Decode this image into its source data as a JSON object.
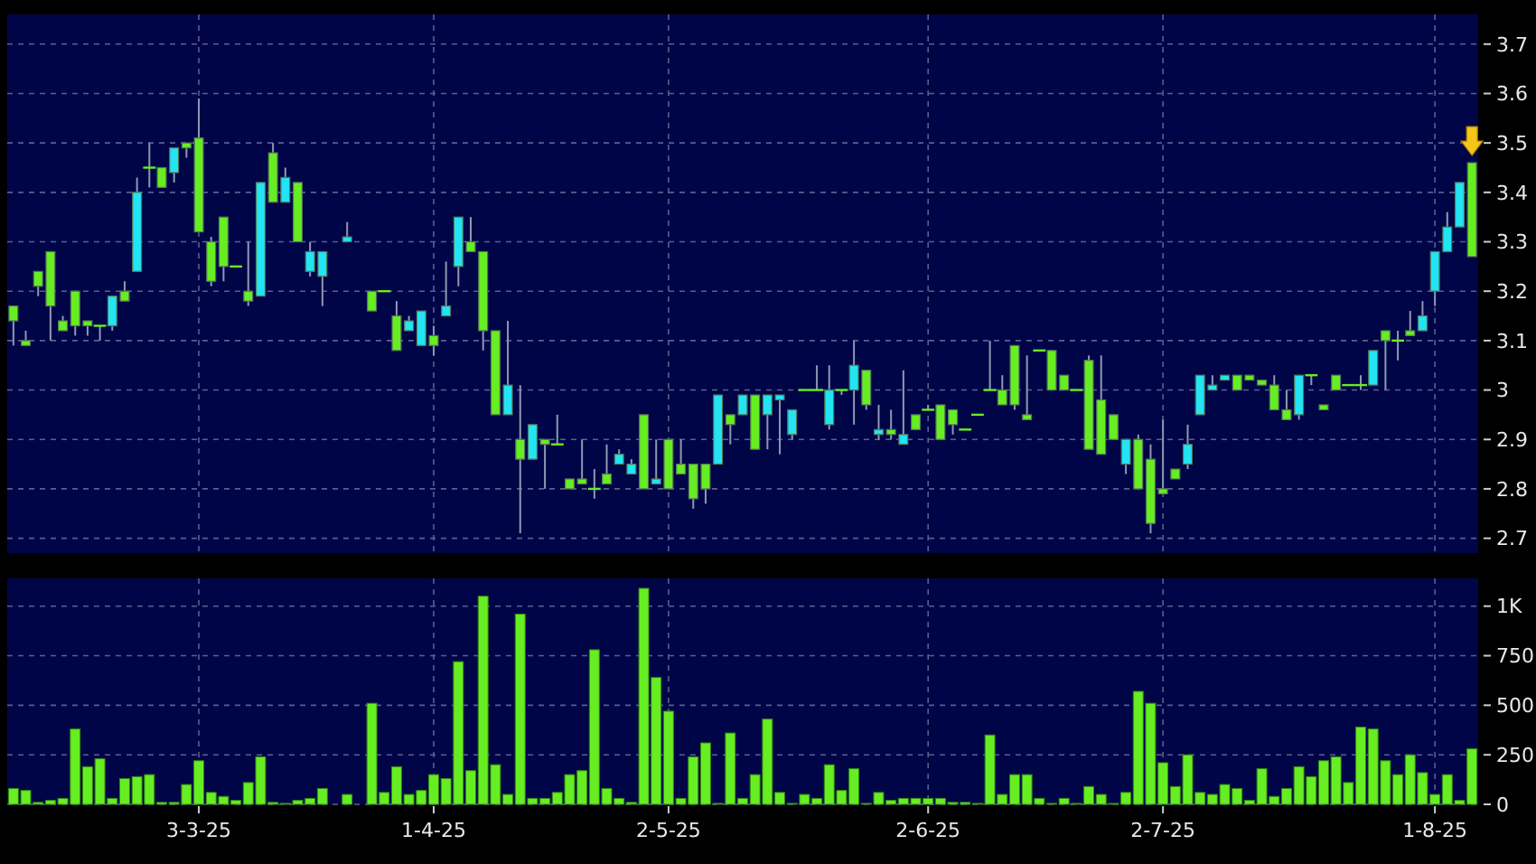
{
  "chart_data": [
    {
      "type": "candlestick",
      "tick_labels": "y",
      "grid": true,
      "ylim": [
        2.67,
        3.76
      ],
      "yticks": [
        2.7,
        2.8,
        2.9,
        3,
        3.1,
        3.2,
        3.3,
        3.4,
        3.5,
        3.6,
        3.7
      ],
      "categories": [
        null,
        null,
        null,
        null,
        null,
        null,
        null,
        null,
        null,
        null,
        null,
        null,
        null,
        null,
        null,
        null,
        null,
        null,
        null,
        null,
        null,
        null,
        null,
        null,
        null,
        null,
        null,
        null,
        null,
        null,
        null,
        null,
        null,
        null,
        null,
        null,
        null,
        null,
        null,
        null,
        null,
        null,
        null,
        null,
        null,
        null,
        null,
        null,
        null,
        null,
        null,
        null,
        null,
        null,
        null,
        null,
        null,
        null,
        null,
        null,
        null,
        null,
        null,
        null,
        null,
        null,
        null,
        null,
        null,
        null,
        null,
        null,
        null,
        null,
        null,
        null,
        null,
        null,
        null,
        null,
        null,
        null,
        null,
        null,
        null,
        null,
        null,
        null,
        null,
        null,
        null,
        null,
        null,
        null,
        null,
        null,
        null,
        null,
        null,
        null,
        null,
        null,
        null,
        null,
        null,
        null,
        null,
        null,
        null,
        null,
        null,
        null,
        null,
        null,
        null,
        null,
        null,
        null,
        null
      ],
      "ohlc": [
        [
          3.17,
          3.17,
          3.09,
          3.14
        ],
        [
          3.1,
          3.12,
          3.09,
          3.09
        ],
        [
          3.24,
          3.24,
          3.19,
          3.21
        ],
        [
          3.28,
          3.28,
          3.1,
          3.17
        ],
        [
          3.14,
          3.15,
          3.12,
          3.12
        ],
        [
          3.2,
          3.2,
          3.11,
          3.13
        ],
        [
          3.14,
          3.14,
          3.11,
          3.13
        ],
        [
          3.13,
          3.13,
          3.1,
          3.13
        ],
        [
          3.13,
          3.19,
          3.12,
          3.19
        ],
        [
          3.2,
          3.22,
          3.18,
          3.18
        ],
        [
          3.24,
          3.43,
          3.24,
          3.4
        ],
        [
          3.45,
          3.5,
          3.41,
          3.45
        ],
        [
          3.45,
          3.45,
          3.41,
          3.41
        ],
        [
          3.44,
          3.49,
          3.42,
          3.49
        ],
        [
          3.5,
          3.5,
          3.47,
          3.49
        ],
        [
          3.51,
          3.59,
          3.32,
          3.32
        ],
        [
          3.3,
          3.31,
          3.21,
          3.22
        ],
        [
          3.35,
          3.35,
          3.22,
          3.25
        ],
        [
          3.25,
          3.25,
          3.25,
          3.25
        ],
        [
          3.2,
          3.3,
          3.17,
          3.18
        ],
        [
          3.19,
          3.42,
          3.19,
          3.42
        ],
        [
          3.48,
          3.5,
          3.38,
          3.38
        ],
        [
          3.38,
          3.45,
          3.38,
          3.43
        ],
        [
          3.42,
          3.42,
          3.3,
          3.3
        ],
        [
          3.24,
          3.3,
          3.23,
          3.28
        ],
        [
          3.23,
          3.28,
          3.17,
          3.28
        ],
        null,
        [
          3.3,
          3.34,
          3.3,
          3.31
        ],
        null,
        [
          3.2,
          3.2,
          3.16,
          3.16
        ],
        [
          3.2,
          3.2,
          3.2,
          3.2
        ],
        [
          3.15,
          3.18,
          3.08,
          3.08
        ],
        [
          3.12,
          3.15,
          3.12,
          3.14
        ],
        [
          3.09,
          3.16,
          3.09,
          3.16
        ],
        [
          3.11,
          3.13,
          3.07,
          3.09
        ],
        [
          3.15,
          3.26,
          3.15,
          3.17
        ],
        [
          3.25,
          3.35,
          3.21,
          3.35
        ],
        [
          3.3,
          3.35,
          3.28,
          3.28
        ],
        [
          3.28,
          3.28,
          3.08,
          3.12
        ],
        [
          3.12,
          3.12,
          2.95,
          2.95
        ],
        [
          2.95,
          3.14,
          2.95,
          3.01
        ],
        [
          2.9,
          3.01,
          2.71,
          2.86
        ],
        [
          2.86,
          2.93,
          2.86,
          2.93
        ],
        [
          2.9,
          2.9,
          2.8,
          2.89
        ],
        [
          2.89,
          2.95,
          2.89,
          2.89
        ],
        [
          2.82,
          2.82,
          2.8,
          2.8
        ],
        [
          2.82,
          2.9,
          2.81,
          2.81
        ],
        [
          2.8,
          2.84,
          2.78,
          2.8
        ],
        [
          2.83,
          2.89,
          2.81,
          2.81
        ],
        [
          2.85,
          2.88,
          2.85,
          2.87
        ],
        [
          2.83,
          2.86,
          2.83,
          2.85
        ],
        [
          2.95,
          2.95,
          2.8,
          2.8
        ],
        [
          2.81,
          2.9,
          2.81,
          2.82
        ],
        [
          2.9,
          2.9,
          2.8,
          2.8
        ],
        [
          2.85,
          2.9,
          2.83,
          2.83
        ],
        [
          2.85,
          2.85,
          2.76,
          2.78
        ],
        [
          2.85,
          2.85,
          2.77,
          2.8
        ],
        [
          2.85,
          2.99,
          2.85,
          2.99
        ],
        [
          2.95,
          2.95,
          2.89,
          2.93
        ],
        [
          2.95,
          2.99,
          2.95,
          2.99
        ],
        [
          2.99,
          2.99,
          2.88,
          2.88
        ],
        [
          2.95,
          2.99,
          2.88,
          2.99
        ],
        [
          2.98,
          2.99,
          2.87,
          2.99
        ],
        [
          2.91,
          2.96,
          2.9,
          2.96
        ],
        [
          3.0,
          3.0,
          3.0,
          3.0
        ],
        [
          3.0,
          3.05,
          3.0,
          3.0
        ],
        [
          2.93,
          3.05,
          2.92,
          3.0
        ],
        [
          3.0,
          3.0,
          2.99,
          3.0
        ],
        [
          3.0,
          3.1,
          2.93,
          3.05
        ],
        [
          3.04,
          3.04,
          2.96,
          2.97
        ],
        [
          2.91,
          2.97,
          2.9,
          2.92
        ],
        [
          2.92,
          2.96,
          2.9,
          2.91
        ],
        [
          2.89,
          3.04,
          2.89,
          2.91
        ],
        [
          2.95,
          2.95,
          2.92,
          2.92
        ],
        [
          2.96,
          2.97,
          2.96,
          2.96
        ],
        [
          2.97,
          2.97,
          2.9,
          2.9
        ],
        [
          2.96,
          2.96,
          2.91,
          2.93
        ],
        [
          2.92,
          2.92,
          2.92,
          2.92
        ],
        [
          2.95,
          2.95,
          2.95,
          2.95
        ],
        [
          3.0,
          3.1,
          3.0,
          3.0
        ],
        [
          3.0,
          3.03,
          2.97,
          2.97
        ],
        [
          3.09,
          3.09,
          2.96,
          2.97
        ],
        [
          2.95,
          3.07,
          2.94,
          2.94
        ],
        [
          3.08,
          3.08,
          3.08,
          3.08
        ],
        [
          3.08,
          3.08,
          3.0,
          3.0
        ],
        [
          3.03,
          3.03,
          3.0,
          3.0
        ],
        [
          3.0,
          3.0,
          3.0,
          3.0
        ],
        [
          3.06,
          3.07,
          2.88,
          2.88
        ],
        [
          2.98,
          3.07,
          2.87,
          2.87
        ],
        [
          2.95,
          2.95,
          2.9,
          2.9
        ],
        [
          2.85,
          2.9,
          2.83,
          2.9
        ],
        [
          2.9,
          2.91,
          2.8,
          2.8
        ],
        [
          2.86,
          2.89,
          2.71,
          2.73
        ],
        [
          2.8,
          2.94,
          2.79,
          2.79
        ],
        [
          2.84,
          2.84,
          2.82,
          2.82
        ],
        [
          2.85,
          2.93,
          2.84,
          2.89
        ],
        [
          2.95,
          3.03,
          2.95,
          3.03
        ],
        [
          3.0,
          3.03,
          3.0,
          3.01
        ],
        [
          3.02,
          3.03,
          3.02,
          3.03
        ],
        [
          3.03,
          3.03,
          3.0,
          3.0
        ],
        [
          3.03,
          3.03,
          3.02,
          3.02
        ],
        [
          3.02,
          3.02,
          3.01,
          3.01
        ],
        [
          3.01,
          3.03,
          2.96,
          2.96
        ],
        [
          2.96,
          3.0,
          2.94,
          2.94
        ],
        [
          2.95,
          3.03,
          2.94,
          3.03
        ],
        [
          3.03,
          3.03,
          3.01,
          3.03
        ],
        [
          2.97,
          2.97,
          2.96,
          2.96
        ],
        [
          3.03,
          3.03,
          3.0,
          3.0
        ],
        [
          3.01,
          3.01,
          3.01,
          3.01
        ],
        [
          3.01,
          3.03,
          3.0,
          3.01
        ],
        [
          3.01,
          3.08,
          3.01,
          3.08
        ],
        [
          3.12,
          3.12,
          3.0,
          3.1
        ],
        [
          3.1,
          3.12,
          3.06,
          3.1
        ],
        [
          3.12,
          3.16,
          3.11,
          3.11
        ],
        [
          3.12,
          3.18,
          3.12,
          3.15
        ],
        [
          3.2,
          3.28,
          3.17,
          3.28
        ],
        [
          3.28,
          3.36,
          3.28,
          3.33
        ],
        [
          3.33,
          3.42,
          3.33,
          3.42
        ],
        [
          3.46,
          3.46,
          3.27,
          3.27
        ]
      ],
      "colors": [
        "#66ee22",
        "#66ee22",
        "#66ee22",
        "#66ee22",
        "#66ee22",
        "#66ee22",
        "#66ee22",
        "#66ee22",
        "#22e4f4",
        "#66ee22",
        "#22e4f4",
        "#66ee22",
        "#66ee22",
        "#22e4f4",
        "#66ee22",
        "#66ee22",
        "#66ee22",
        "#66ee22",
        "#66ee22",
        "#66ee22",
        "#22e4f4",
        "#66ee22",
        "#22e4f4",
        "#66ee22",
        "#22e4f4",
        "#22e4f4",
        null,
        "#22e4f4",
        null,
        "#66ee22",
        "#66ee22",
        "#66ee22",
        "#22e4f4",
        "#22e4f4",
        "#66ee22",
        "#22e4f4",
        "#22e4f4",
        "#66ee22",
        "#66ee22",
        "#66ee22",
        "#22e4f4",
        "#66ee22",
        "#22e4f4",
        "#66ee22",
        "#66ee22",
        "#66ee22",
        "#66ee22",
        "#66ee22",
        "#66ee22",
        "#22e4f4",
        "#22e4f4",
        "#66ee22",
        "#22e4f4",
        "#66ee22",
        "#66ee22",
        "#66ee22",
        "#66ee22",
        "#22e4f4",
        "#66ee22",
        "#22e4f4",
        "#66ee22",
        "#22e4f4",
        "#22e4f4",
        "#22e4f4",
        "#66ee22",
        "#66ee22",
        "#22e4f4",
        "#66ee22",
        "#22e4f4",
        "#66ee22",
        "#22e4f4",
        "#66ee22",
        "#22e4f4",
        "#66ee22",
        "#66ee22",
        "#66ee22",
        "#66ee22",
        "#66ee22",
        "#66ee22",
        "#66ee22",
        "#66ee22",
        "#66ee22",
        "#66ee22",
        "#66ee22",
        "#66ee22",
        "#66ee22",
        "#66ee22",
        "#66ee22",
        "#66ee22",
        "#66ee22",
        "#22e4f4",
        "#66ee22",
        "#66ee22",
        "#66ee22",
        "#66ee22",
        "#22e4f4",
        "#22e4f4",
        "#22e4f4",
        "#22e4f4",
        "#66ee22",
        "#66ee22",
        "#66ee22",
        "#66ee22",
        "#66ee22",
        "#22e4f4",
        "#66ee22",
        "#66ee22",
        "#66ee22",
        "#66ee22",
        "#66ee22",
        "#22e4f4",
        "#66ee22",
        "#66ee22",
        "#66ee22",
        "#22e4f4",
        "#22e4f4",
        "#22e4f4",
        "#22e4f4",
        "#66ee22"
      ]
    },
    {
      "type": "bar",
      "grid": true,
      "color": "#66ee22",
      "ylim": [
        0,
        1140
      ],
      "yticks": [
        0,
        250,
        500,
        750,
        {
          "value": 1000,
          "label": "1K"
        }
      ],
      "categories": [
        null,
        null,
        null,
        null,
        null,
        null,
        null,
        null,
        null,
        null,
        null,
        null,
        null,
        null,
        null,
        "3-3-25",
        null,
        null,
        null,
        null,
        null,
        null,
        null,
        null,
        null,
        null,
        null,
        null,
        null,
        null,
        null,
        null,
        null,
        null,
        "1-4-25",
        null,
        null,
        null,
        null,
        null,
        null,
        null,
        null,
        null,
        null,
        null,
        null,
        null,
        null,
        null,
        null,
        null,
        null,
        "2-5-25",
        null,
        null,
        null,
        null,
        null,
        null,
        null,
        null,
        null,
        null,
        null,
        null,
        null,
        null,
        null,
        null,
        null,
        null,
        null,
        null,
        "2-6-25",
        null,
        null,
        null,
        null,
        null,
        null,
        null,
        null,
        null,
        null,
        null,
        null,
        null,
        null,
        null,
        null,
        null,
        null,
        "2-7-25",
        null,
        null,
        null,
        null,
        null,
        null,
        null,
        null,
        null,
        null,
        null,
        null,
        null,
        null,
        null,
        null,
        null,
        null,
        null,
        null,
        null,
        "1-8-25",
        null,
        null,
        null
      ],
      "values": [
        80,
        70,
        10,
        20,
        30,
        380,
        190,
        230,
        30,
        130,
        140,
        150,
        10,
        10,
        100,
        220,
        60,
        40,
        20,
        110,
        240,
        10,
        5,
        20,
        30,
        80,
        0,
        50,
        0,
        510,
        60,
        190,
        50,
        70,
        150,
        130,
        720,
        170,
        1050,
        200,
        50,
        960,
        30,
        30,
        60,
        150,
        170,
        780,
        80,
        30,
        10,
        1090,
        640,
        470,
        30,
        240,
        310,
        5,
        360,
        30,
        150,
        430,
        60,
        5,
        50,
        30,
        200,
        70,
        180,
        5,
        60,
        20,
        30,
        30,
        30,
        30,
        10,
        10,
        5,
        350,
        50,
        150,
        150,
        30,
        5,
        30,
        5,
        90,
        50,
        5,
        60,
        570,
        510,
        210,
        90,
        250,
        60,
        50,
        100,
        80,
        20,
        180,
        40,
        80,
        190,
        140,
        220,
        240,
        110,
        390,
        380,
        220,
        150,
        250,
        160,
        50,
        150,
        20,
        280
      ]
    }
  ]
}
